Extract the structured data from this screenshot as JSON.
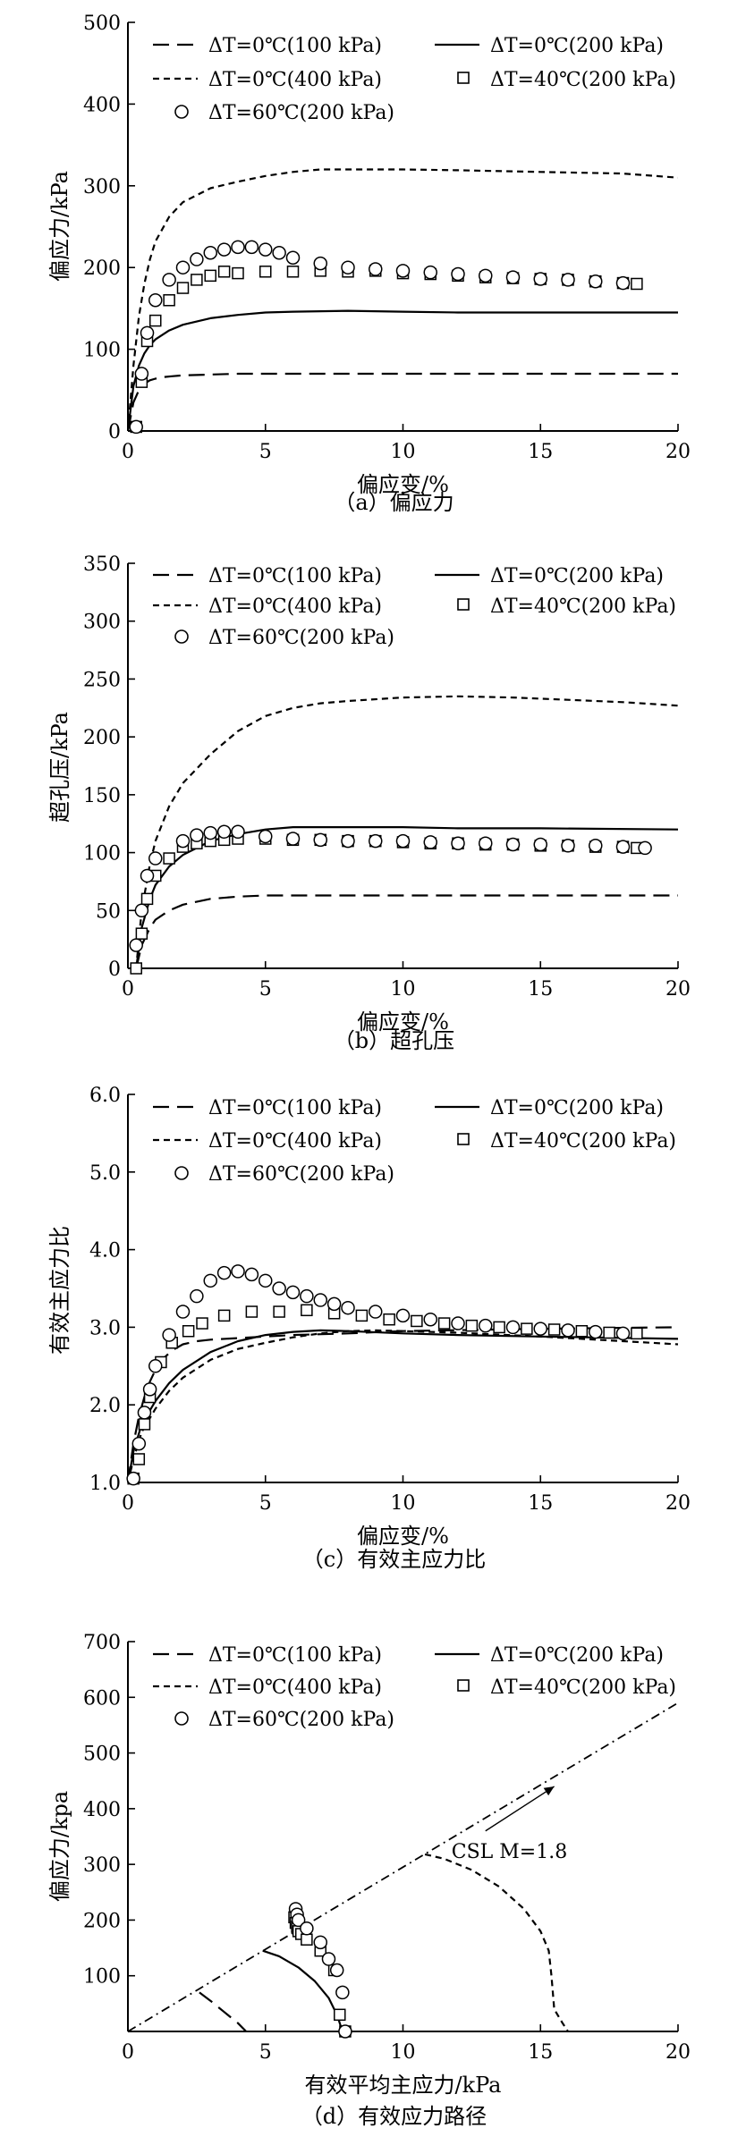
{
  "legend_labels": {
    "s1": "ΔT=0℃(100 kPa)",
    "s2": "ΔT=0℃(200 kPa)",
    "s3": "ΔT=0℃(400 kPa)",
    "s4": "ΔT=40℃(200 kPa)",
    "s5": "ΔT=60℃(200 kPa)"
  },
  "chart_data": [
    {
      "type": "line",
      "caption": "（a）偏应力",
      "xlabel": "偏应变/%",
      "ylabel": "偏应力/kPa",
      "xlim": [
        0,
        20
      ],
      "ylim": [
        0,
        500
      ],
      "xticks": [
        0,
        5,
        10,
        15,
        20
      ],
      "yticks": [
        0,
        100,
        200,
        300,
        400,
        500
      ],
      "series": [
        {
          "key": "s1",
          "style": "longdash",
          "x": [
            0,
            0.2,
            0.4,
            0.6,
            0.8,
            1,
            1.3,
            1.6,
            2,
            3,
            4,
            6,
            8,
            10,
            15,
            20
          ],
          "y": [
            0,
            35,
            50,
            58,
            62,
            64,
            66,
            67,
            68,
            69,
            70,
            70,
            70,
            70,
            70,
            70
          ]
        },
        {
          "key": "s2",
          "style": "solid",
          "x": [
            0,
            0.2,
            0.4,
            0.6,
            0.8,
            1,
            1.5,
            2,
            3,
            4,
            5,
            6,
            8,
            10,
            12,
            15,
            20
          ],
          "y": [
            0,
            55,
            80,
            95,
            105,
            112,
            123,
            130,
            138,
            142,
            145,
            146,
            147,
            146,
            145,
            145,
            145
          ]
        },
        {
          "key": "s3",
          "style": "shortdash",
          "x": [
            0,
            0.2,
            0.4,
            0.6,
            0.8,
            1,
            1.5,
            2,
            3,
            4,
            5,
            6,
            7,
            8,
            10,
            12,
            15,
            18,
            20
          ],
          "y": [
            0,
            80,
            140,
            180,
            210,
            232,
            262,
            280,
            297,
            305,
            312,
            317,
            320,
            320,
            320,
            319,
            317,
            315,
            310
          ]
        },
        {
          "key": "s4",
          "style": "square",
          "x": [
            0.3,
            0.5,
            0.7,
            1,
            1.5,
            2,
            2.5,
            3,
            3.5,
            4,
            5,
            6,
            7,
            8,
            9,
            10,
            11,
            12,
            13,
            14,
            15,
            16,
            17,
            18,
            18.5
          ],
          "y": [
            5,
            60,
            110,
            135,
            160,
            175,
            185,
            190,
            195,
            193,
            195,
            195,
            196,
            195,
            196,
            193,
            192,
            190,
            188,
            187,
            186,
            185,
            183,
            181,
            180
          ]
        },
        {
          "key": "s5",
          "style": "circle",
          "x": [
            0.3,
            0.5,
            0.7,
            1,
            1.5,
            2,
            2.5,
            3,
            3.5,
            4,
            4.5,
            5,
            5.5,
            6,
            7,
            8,
            9,
            10,
            11,
            12,
            13,
            14,
            15,
            16,
            17,
            18
          ],
          "y": [
            5,
            70,
            120,
            160,
            185,
            200,
            210,
            218,
            222,
            225,
            225,
            222,
            218,
            212,
            205,
            200,
            198,
            196,
            194,
            192,
            190,
            188,
            186,
            185,
            183,
            181
          ]
        }
      ]
    },
    {
      "type": "line",
      "caption": "（b）超孔压",
      "xlabel": "偏应变/%",
      "ylabel": "超孔压/kPa",
      "xlim": [
        0,
        20
      ],
      "ylim": [
        0,
        350
      ],
      "xticks": [
        0,
        5,
        10,
        15,
        20
      ],
      "yticks": [
        0,
        50,
        100,
        150,
        200,
        250,
        300,
        350
      ],
      "series": [
        {
          "key": "s1",
          "style": "longdash",
          "x": [
            0.3,
            0.5,
            0.8,
            1,
            1.5,
            2,
            3,
            4,
            5,
            6,
            8,
            10,
            15,
            20
          ],
          "y": [
            0,
            20,
            35,
            42,
            50,
            55,
            60,
            62,
            63,
            63,
            63,
            63,
            63,
            63
          ]
        },
        {
          "key": "s2",
          "style": "solid",
          "x": [
            0.3,
            0.5,
            0.8,
            1,
            1.5,
            2,
            3,
            4,
            5,
            6,
            8,
            10,
            12,
            15,
            20
          ],
          "y": [
            0,
            35,
            60,
            72,
            88,
            98,
            110,
            116,
            120,
            122,
            122,
            122,
            121,
            121,
            120
          ]
        },
        {
          "key": "s3",
          "style": "shortdash",
          "x": [
            0.3,
            0.5,
            0.8,
            1,
            1.5,
            2,
            3,
            4,
            5,
            6,
            7,
            8,
            10,
            12,
            14,
            16,
            18,
            20
          ],
          "y": [
            0,
            50,
            90,
            110,
            140,
            160,
            185,
            205,
            218,
            225,
            229,
            231,
            234,
            235,
            234,
            232,
            230,
            227
          ]
        },
        {
          "key": "s4",
          "style": "square",
          "x": [
            0.3,
            0.5,
            0.7,
            1,
            1.5,
            2,
            2.5,
            3,
            3.5,
            4,
            5,
            6,
            7,
            8,
            9,
            10,
            11,
            12,
            13,
            14,
            15,
            16,
            17,
            18,
            18.5
          ],
          "y": [
            0,
            30,
            60,
            80,
            95,
            105,
            108,
            110,
            111,
            112,
            112,
            111,
            111,
            110,
            110,
            109,
            108,
            108,
            107,
            107,
            106,
            106,
            105,
            105,
            104
          ]
        },
        {
          "key": "s5",
          "style": "circle",
          "x": [
            0.3,
            0.5,
            0.7,
            1,
            2,
            2.5,
            3,
            3.5,
            4,
            5,
            6,
            7,
            8,
            9,
            10,
            11,
            12,
            13,
            14,
            15,
            16,
            17,
            18,
            18.8
          ],
          "y": [
            20,
            50,
            80,
            95,
            110,
            115,
            117,
            118,
            118,
            114,
            112,
            111,
            110,
            110,
            110,
            109,
            108,
            108,
            107,
            107,
            106,
            106,
            105,
            104
          ]
        }
      ]
    },
    {
      "type": "line",
      "caption": "（c）有效主应力比",
      "xlabel": "偏应变/%",
      "ylabel": "有效主应力比",
      "xlim": [
        0,
        20
      ],
      "ylim": [
        1.0,
        6.0
      ],
      "xticks": [
        0,
        5,
        10,
        15,
        20
      ],
      "yticks": [
        "1.0",
        "2.0",
        "3.0",
        "4.0",
        "5.0",
        "6.0"
      ],
      "series": [
        {
          "key": "s1",
          "style": "longdash",
          "x": [
            0,
            0.2,
            0.4,
            0.6,
            0.8,
            1,
            1.3,
            1.6,
            2,
            2.5,
            3,
            4,
            5,
            6,
            8,
            10,
            15,
            20
          ],
          "y": [
            1.0,
            1.5,
            1.85,
            2.1,
            2.3,
            2.45,
            2.6,
            2.7,
            2.78,
            2.82,
            2.84,
            2.86,
            2.88,
            2.9,
            2.92,
            2.95,
            2.98,
            3.0
          ]
        },
        {
          "key": "s2",
          "style": "solid",
          "x": [
            0,
            0.2,
            0.5,
            1,
            1.5,
            2,
            3,
            4,
            5,
            6,
            7,
            8,
            10,
            12,
            15,
            20
          ],
          "y": [
            1.0,
            1.4,
            1.75,
            2.05,
            2.28,
            2.45,
            2.68,
            2.82,
            2.9,
            2.94,
            2.96,
            2.95,
            2.92,
            2.9,
            2.88,
            2.85
          ]
        },
        {
          "key": "s3",
          "style": "shortdash",
          "x": [
            0,
            0.2,
            0.5,
            1,
            1.5,
            2,
            3,
            4,
            5,
            6,
            7,
            8,
            9,
            10,
            12,
            15,
            18,
            20
          ],
          "y": [
            1.0,
            1.3,
            1.65,
            1.95,
            2.18,
            2.35,
            2.58,
            2.72,
            2.8,
            2.87,
            2.92,
            2.95,
            2.96,
            2.95,
            2.93,
            2.88,
            2.82,
            2.78
          ]
        },
        {
          "key": "s4",
          "style": "square",
          "x": [
            0.2,
            0.4,
            0.6,
            0.8,
            1.2,
            1.6,
            2.2,
            2.7,
            3.5,
            4.5,
            5.5,
            6.5,
            7.5,
            8.5,
            9.5,
            10.5,
            11.5,
            12.5,
            13.5,
            14.5,
            15.5,
            16.5,
            17.5,
            18.5
          ],
          "y": [
            1.05,
            1.3,
            1.75,
            2.1,
            2.55,
            2.8,
            2.95,
            3.05,
            3.15,
            3.2,
            3.2,
            3.22,
            3.18,
            3.15,
            3.1,
            3.08,
            3.05,
            3.02,
            3.0,
            2.98,
            2.97,
            2.95,
            2.93,
            2.92
          ]
        },
        {
          "key": "s5",
          "style": "circle",
          "x": [
            0.2,
            0.4,
            0.6,
            0.8,
            1,
            1.5,
            2,
            2.5,
            3,
            3.5,
            4,
            4.5,
            5,
            5.5,
            6,
            6.5,
            7,
            7.5,
            8,
            9,
            10,
            11,
            12,
            13,
            14,
            15,
            16,
            17,
            18
          ],
          "y": [
            1.05,
            1.5,
            1.9,
            2.2,
            2.5,
            2.9,
            3.2,
            3.4,
            3.6,
            3.7,
            3.72,
            3.68,
            3.6,
            3.5,
            3.45,
            3.4,
            3.35,
            3.3,
            3.25,
            3.2,
            3.15,
            3.1,
            3.05,
            3.02,
            3.0,
            2.98,
            2.96,
            2.94,
            2.92
          ]
        }
      ]
    },
    {
      "type": "line",
      "caption": "（d）有效应力路径",
      "xlabel": "有效平均主应力/kPa",
      "ylabel": "偏应力/kpa",
      "xlim": [
        0,
        20
      ],
      "ylim": [
        0,
        700
      ],
      "xticks": [
        0,
        5,
        10,
        15,
        20
      ],
      "yticks": [
        100,
        200,
        300,
        400,
        500,
        600,
        700
      ],
      "csl_label": "CSL M=1.8",
      "csl": {
        "x": [
          0,
          20
        ],
        "y": [
          0,
          590
        ]
      },
      "csl_arrow": {
        "from": [
          13.0,
          360
        ],
        "to": [
          15.5,
          440
        ]
      },
      "series": [
        {
          "key": "s1",
          "style": "longdash",
          "x": [
            2.6,
            3.0,
            3.5,
            4.0,
            4.3
          ],
          "y": [
            70,
            55,
            35,
            15,
            0
          ]
        },
        {
          "key": "s2",
          "style": "solid",
          "x": [
            4.9,
            5.5,
            6.2,
            6.8,
            7.3,
            7.6,
            7.8
          ],
          "y": [
            145,
            135,
            115,
            90,
            60,
            30,
            0
          ]
        },
        {
          "key": "s3",
          "style": "shortdash",
          "x": [
            10.8,
            11.5,
            12.5,
            13.5,
            14.4,
            15.0,
            15.3,
            15.4,
            15.5,
            15.8,
            16.0
          ],
          "y": [
            318,
            310,
            290,
            260,
            220,
            180,
            145,
            100,
            40,
            15,
            0
          ]
        },
        {
          "key": "s4",
          "style": "square",
          "x": [
            6.05,
            6.1,
            6.15,
            6.2,
            6.3,
            6.5,
            7.0,
            7.5,
            7.7,
            7.9
          ],
          "y": [
            205,
            195,
            188,
            180,
            175,
            165,
            145,
            110,
            30,
            0
          ]
        },
        {
          "key": "s5",
          "style": "circle",
          "x": [
            6.1,
            6.15,
            6.2,
            6.5,
            7.0,
            7.3,
            7.6,
            7.8,
            7.9
          ],
          "y": [
            220,
            210,
            200,
            185,
            160,
            130,
            110,
            70,
            0
          ]
        }
      ]
    }
  ]
}
